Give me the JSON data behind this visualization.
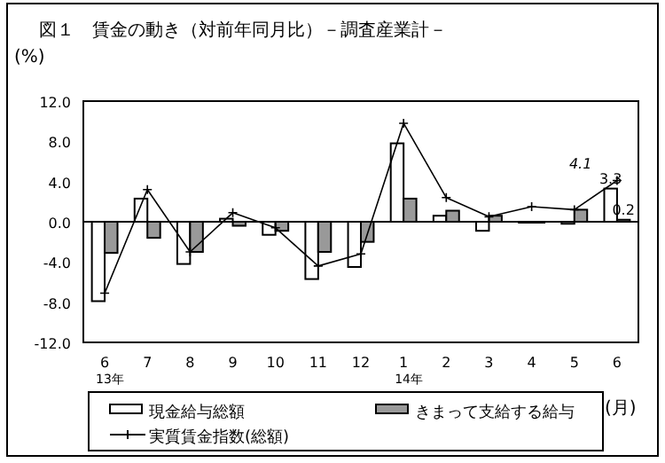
{
  "chart_data": {
    "type": "bar",
    "title": "図１　賃金の動き（対前年同月比）－調査産業計－",
    "ylabel": "(%)",
    "xlabel": "(月)",
    "categories": [
      "6\n13年",
      "7",
      "8",
      "9",
      "10",
      "11",
      "12",
      "1\n14年",
      "2",
      "3",
      "4",
      "5",
      "6"
    ],
    "series": [
      {
        "name": "現金給与総額",
        "color": "#ffffff",
        "values": [
          -7.9,
          2.3,
          -4.2,
          0.3,
          -1.3,
          -5.7,
          -4.5,
          7.8,
          0.6,
          -0.9,
          0.0,
          -0.2,
          3.3
        ],
        "value_labels": [
          null,
          null,
          null,
          null,
          null,
          null,
          null,
          null,
          null,
          null,
          null,
          null,
          "3.3"
        ]
      },
      {
        "name": "きまって支給する給与",
        "color": "#999999",
        "values": [
          -3.1,
          -1.6,
          -3.0,
          -0.4,
          -0.9,
          -3.0,
          -2.0,
          2.3,
          1.1,
          0.6,
          0.0,
          1.2,
          0.2
        ],
        "value_labels": [
          null,
          null,
          null,
          null,
          null,
          null,
          null,
          null,
          null,
          null,
          null,
          null,
          "0.2"
        ]
      },
      {
        "name": "実質賃金指数(総額)",
        "type": "line",
        "color": "#000000",
        "marker": "cross",
        "values": [
          -7.1,
          3.2,
          -3.0,
          0.9,
          -0.6,
          -4.4,
          -3.2,
          9.8,
          2.4,
          0.5,
          1.5,
          1.2,
          4.1
        ],
        "value_labels": [
          null,
          null,
          null,
          null,
          null,
          null,
          null,
          null,
          null,
          null,
          null,
          null,
          "4.1"
        ]
      }
    ],
    "ylim": [
      -12,
      12
    ],
    "yticks": [
      {
        "value": -12,
        "label": "-12.0"
      },
      {
        "value": -8,
        "label": "-8.0"
      },
      {
        "value": -4,
        "label": "-4.0"
      },
      {
        "value": 0,
        "label": "0.0"
      },
      {
        "value": 4,
        "label": "4.0"
      },
      {
        "value": 8,
        "label": "8.0"
      },
      {
        "value": 12,
        "label": "12.0"
      }
    ],
    "ref_lines": [
      {
        "axis": "y",
        "value": 0,
        "color": "#000000"
      }
    ],
    "legend": "bottom",
    "grid": false
  }
}
